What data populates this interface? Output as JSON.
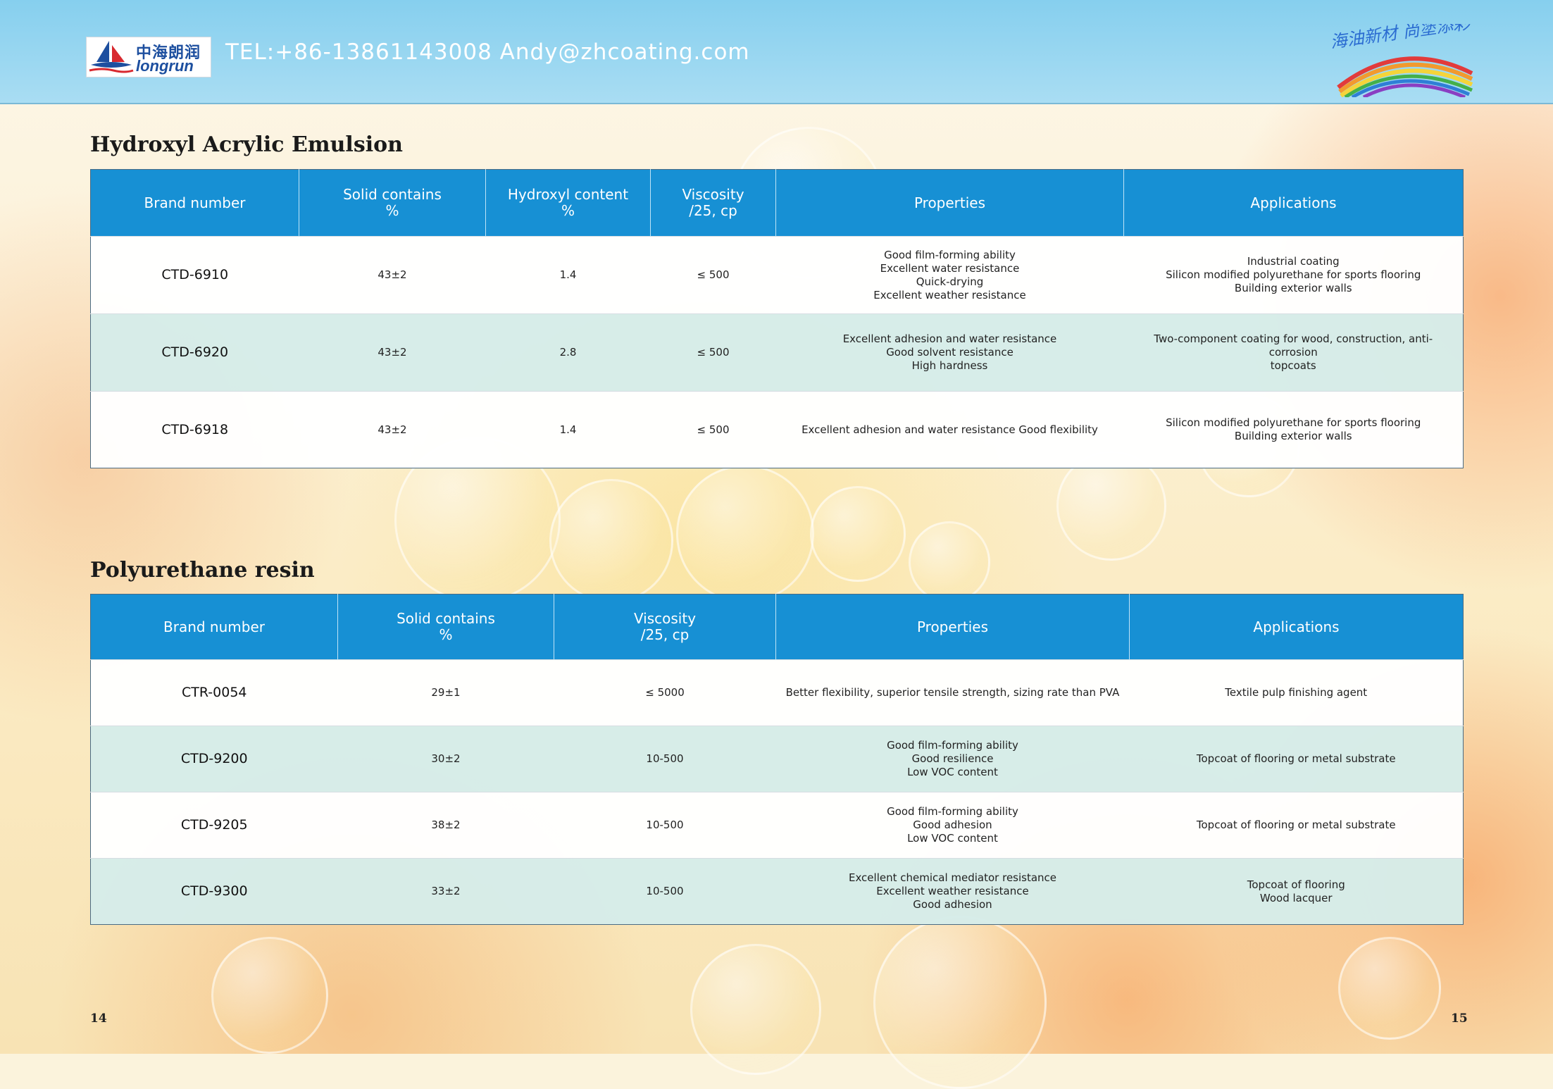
{
  "header": {
    "logo_cn": "中海朗润",
    "logo_en": "longrun",
    "contact": "TEL:+86-13861143008 Andy@zhcoating.com",
    "slogan": "海油新材 尚塗添彩"
  },
  "sections": [
    {
      "title": "Hydroxyl Acrylic Emulsion",
      "headers": [
        "Brand number",
        "Solid contains\n%",
        "Hydroxyl content\n%",
        "Viscosity\n/25, cp",
        "Properties",
        "Applications"
      ],
      "rows": [
        [
          "CTD-6910",
          "43±2",
          "1.4",
          "≤ 500",
          "Good film-forming ability\nExcellent water resistance\nQuick-drying\nExcellent weather resistance",
          "Industrial coating\nSilicon modified polyurethane for sports flooring\nBuilding exterior walls"
        ],
        [
          "CTD-6920",
          "43±2",
          "2.8",
          "≤ 500",
          "Excellent adhesion and water resistance\nGood solvent resistance\nHigh hardness",
          "Two-component coating for wood, construction, anti-corrosion\ntopcoats"
        ],
        [
          "CTD-6918",
          "43±2",
          "1.4",
          "≤ 500",
          "Excellent adhesion and water resistance Good flexibility",
          "Silicon modified polyurethane for sports flooring\nBuilding exterior walls"
        ]
      ]
    },
    {
      "title": "Polyurethane resin",
      "headers": [
        "Brand number",
        "Solid contains\n%",
        "Viscosity\n/25, cp",
        "Properties",
        "Applications"
      ],
      "rows": [
        [
          "CTR-0054",
          "29±1",
          "≤ 5000",
          "Better flexibility, superior tensile strength, sizing rate than PVA",
          "Textile pulp finishing agent"
        ],
        [
          "CTD-9200",
          "30±2",
          "10-500",
          "Good film-forming ability\nGood resilience\nLow VOC content",
          "Topcoat of flooring or metal substrate"
        ],
        [
          "CTD-9205",
          "38±2",
          "10-500",
          "Good film-forming ability\nGood adhesion\nLow VOC content",
          "Topcoat of flooring or metal substrate"
        ],
        [
          "CTD-9300",
          "33±2",
          "10-500",
          "Excellent chemical mediator resistance\nExcellent weather resistance\nGood adhesion",
          "Topcoat of flooring\nWood lacquer"
        ]
      ]
    }
  ],
  "page_numbers": {
    "left": "14",
    "right": "15"
  },
  "colors": {
    "header_bg": "#86cfee",
    "table_header": "#1790d4",
    "row_alt": "#d6ece9"
  }
}
